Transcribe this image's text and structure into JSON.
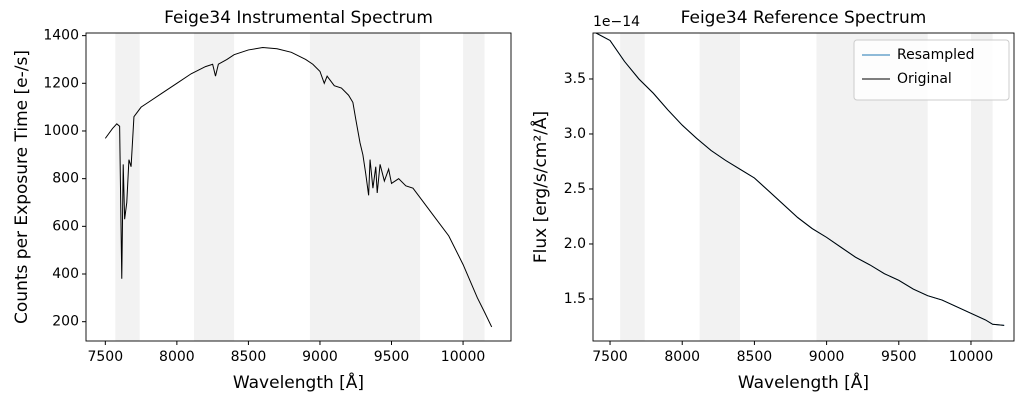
{
  "chart_data": [
    {
      "type": "line",
      "title": "Feige34 Instrumental Spectrum",
      "xlabel": "Wavelength [Å]",
      "ylabel": "Counts per Exposure Time [e-/s]",
      "x": [
        7500,
        7550,
        7580,
        7600,
        7615,
        7625,
        7635,
        7650,
        7665,
        7680,
        7700,
        7750,
        7800,
        7900,
        8000,
        8100,
        8200,
        8250,
        8270,
        8290,
        8350,
        8400,
        8500,
        8600,
        8700,
        8800,
        8900,
        8950,
        9000,
        9030,
        9050,
        9100,
        9150,
        9200,
        9230,
        9250,
        9280,
        9300,
        9320,
        9340,
        9350,
        9370,
        9390,
        9400,
        9420,
        9450,
        9480,
        9500,
        9550,
        9600,
        9650,
        9700,
        9800,
        9900,
        10000,
        10100,
        10150,
        10200
      ],
      "series": [
        {
          "color": "#000000",
          "values": [
            969,
            1010,
            1030,
            1020,
            380,
            860,
            630,
            700,
            880,
            850,
            1060,
            1100,
            1120,
            1160,
            1200,
            1240,
            1270,
            1280,
            1230,
            1280,
            1300,
            1320,
            1340,
            1350,
            1345,
            1330,
            1300,
            1280,
            1250,
            1200,
            1230,
            1190,
            1180,
            1150,
            1120,
            1050,
            950,
            900,
            820,
            730,
            880,
            760,
            850,
            740,
            860,
            790,
            840,
            780,
            800,
            770,
            760,
            720,
            640,
            560,
            440,
            300,
            240,
            178
          ]
        }
      ],
      "shaded_regions": [
        [
          7570,
          7740
        ],
        [
          8120,
          8400
        ],
        [
          8930,
          9700
        ],
        [
          10000,
          10150
        ]
      ],
      "xlim": [
        7365,
        10335
      ],
      "ylim": [
        119,
        1411
      ],
      "xticks": [
        7500,
        8000,
        8500,
        9000,
        9500,
        10000
      ],
      "yticks": [
        200,
        400,
        600,
        800,
        1000,
        1200,
        1400
      ]
    },
    {
      "type": "line",
      "title": "Feige34 Reference Spectrum",
      "xlabel": "Wavelength [Å]",
      "ylabel": "Flux [erg/s/cm²/Å]",
      "offset_label": "1e−14",
      "x": [
        7400,
        7500,
        7600,
        7700,
        7800,
        7900,
        8000,
        8100,
        8200,
        8300,
        8400,
        8500,
        8600,
        8700,
        8800,
        8900,
        9000,
        9100,
        9200,
        9300,
        9400,
        9500,
        9600,
        9700,
        9800,
        9900,
        10000,
        10100,
        10150,
        10230
      ],
      "series": [
        {
          "name": "Resampled",
          "color": "#1f77b4",
          "values": [
            3.92,
            3.85,
            3.66,
            3.5,
            3.37,
            3.22,
            3.08,
            2.96,
            2.85,
            2.76,
            2.68,
            2.6,
            2.48,
            2.36,
            2.24,
            2.14,
            2.06,
            1.97,
            1.88,
            1.81,
            1.73,
            1.67,
            1.59,
            1.53,
            1.49,
            1.43,
            1.37,
            1.31,
            1.27,
            1.26
          ]
        },
        {
          "name": "Original",
          "color": "#000000",
          "values": [
            3.92,
            3.85,
            3.66,
            3.5,
            3.37,
            3.22,
            3.08,
            2.96,
            2.85,
            2.76,
            2.68,
            2.6,
            2.48,
            2.36,
            2.24,
            2.14,
            2.06,
            1.97,
            1.88,
            1.81,
            1.73,
            1.67,
            1.59,
            1.53,
            1.49,
            1.43,
            1.37,
            1.31,
            1.27,
            1.26
          ]
        }
      ],
      "shaded_regions": [
        [
          7570,
          7740
        ],
        [
          8120,
          8400
        ],
        [
          8930,
          9700
        ],
        [
          10000,
          10150
        ]
      ],
      "legend": "upper right",
      "xlim": [
        7382,
        10298
      ],
      "ylim": [
        1.118,
        3.918
      ],
      "xticks": [
        7500,
        8000,
        8500,
        9000,
        9500,
        10000
      ],
      "yticks": [
        1.5,
        {
          "value": 2,
          "label": "2.0"
        },
        2.5,
        {
          "value": 3,
          "label": "3.0"
        },
        3.5
      ]
    }
  ]
}
